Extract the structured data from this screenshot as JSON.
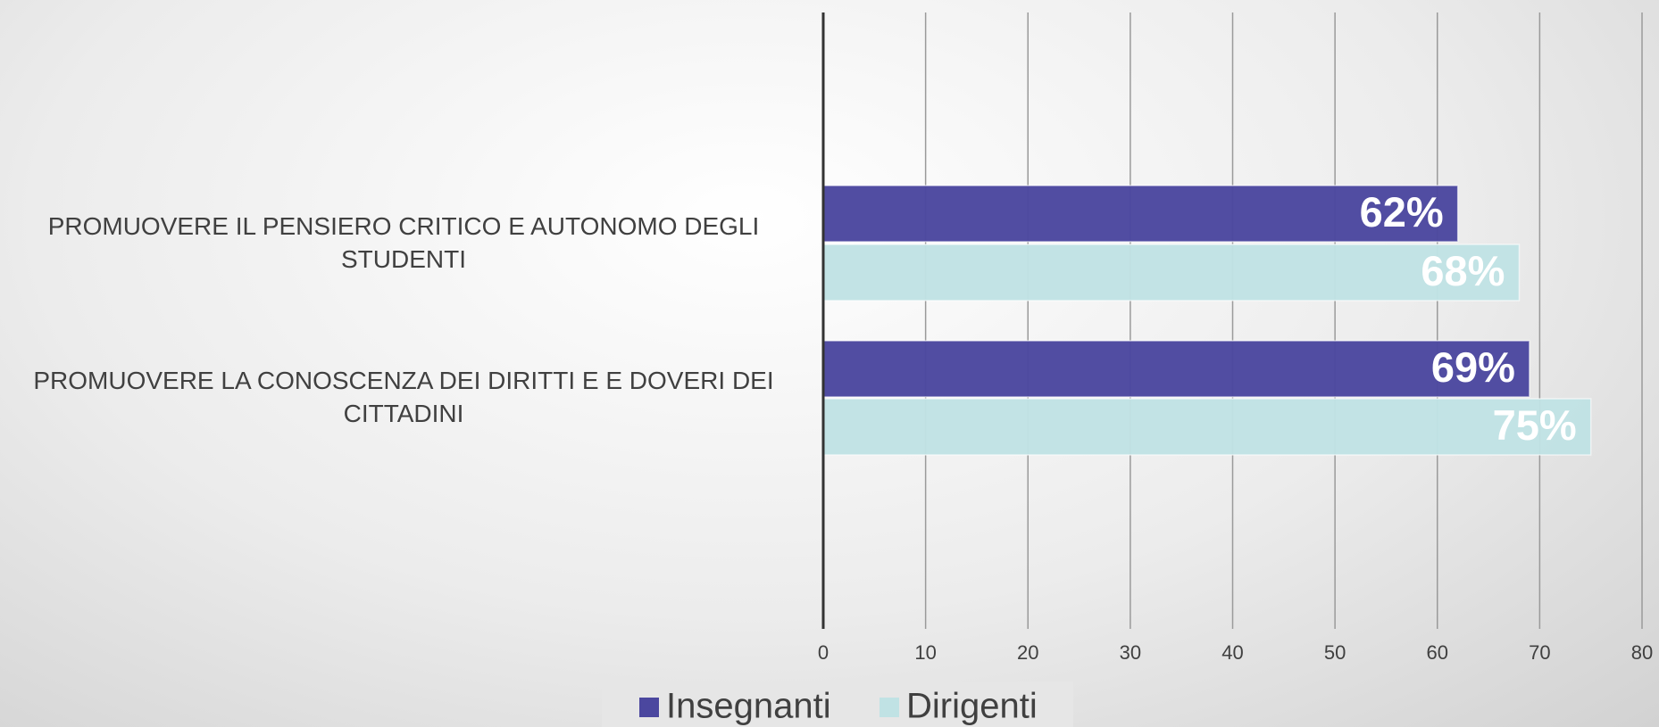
{
  "chart_data": {
    "type": "barh",
    "categories": [
      "PROMUOVERE IL PENSIERO CRITICO E AUTONOMO DEGLI STUDENTI",
      "PROMUOVERE LA CONOSCENZA DEI DIRITTI E E DOVERI DEI CITTADINI"
    ],
    "series": [
      {
        "name": "Insegnanti",
        "color": "#4b479f",
        "values": [
          62,
          69
        ],
        "value_labels": [
          "62%",
          "69%"
        ]
      },
      {
        "name": "Dirigenti",
        "color": "#c0e2e4",
        "values": [
          68,
          75
        ],
        "value_labels": [
          "68%",
          "75%"
        ]
      }
    ],
    "xlim": [
      0,
      80
    ],
    "xticks": [
      0,
      10,
      20,
      30,
      40,
      50,
      60,
      70,
      80
    ],
    "grid": true,
    "legend": "bottom"
  }
}
